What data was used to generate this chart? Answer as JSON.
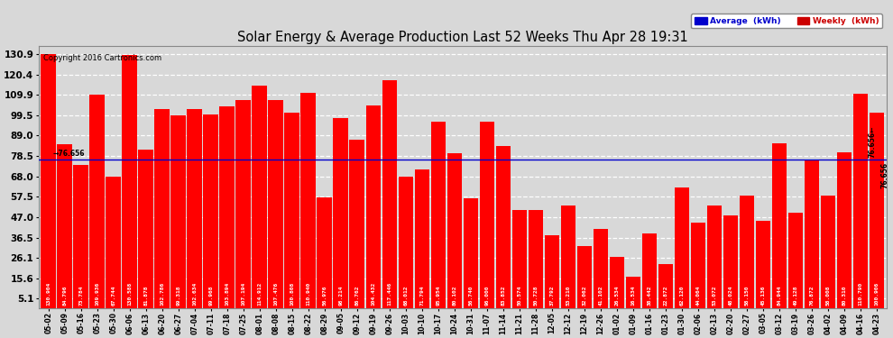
{
  "title": "Solar Energy & Average Production Last 52 Weeks Thu Apr 28 19:31",
  "copyright": "Copyright 2016 Cartronics.com",
  "average_value": 76.656,
  "bar_color": "#ff0000",
  "avg_line_color": "#0000cc",
  "background_color": "#d8d8d8",
  "grid_color": "#ffffff",
  "yticks": [
    5.1,
    15.6,
    26.1,
    36.5,
    47.0,
    57.5,
    68.0,
    78.5,
    89.0,
    99.5,
    109.9,
    120.4,
    130.9
  ],
  "legend_avg_color": "#0000cc",
  "legend_weekly_color": "#cc0000",
  "categories": [
    "05-02",
    "05-09",
    "05-16",
    "05-23",
    "05-30",
    "06-06",
    "06-13",
    "06-20",
    "06-27",
    "07-04",
    "07-11",
    "07-18",
    "07-25",
    "08-01",
    "08-08",
    "08-15",
    "08-22",
    "08-29",
    "09-05",
    "09-12",
    "09-19",
    "09-26",
    "10-03",
    "10-10",
    "10-17",
    "10-24",
    "10-31",
    "11-07",
    "11-14",
    "11-21",
    "11-28",
    "12-05",
    "12-12",
    "12-19",
    "12-26",
    "01-02",
    "01-09",
    "01-16",
    "01-23",
    "01-30",
    "02-06",
    "02-13",
    "02-20",
    "02-27",
    "03-05",
    "03-12",
    "03-19",
    "03-26",
    "04-02",
    "04-09",
    "04-16",
    "04-23"
  ],
  "values": [
    130.904,
    84.796,
    73.784,
    109.936,
    67.744,
    130.588,
    81.878,
    102.786,
    99.318,
    102.634,
    99.968,
    103.894,
    107.194,
    114.912,
    107.476,
    100.808,
    110.94,
    56.976,
    98.214,
    86.762,
    104.432,
    117.446,
    68.012,
    71.794,
    95.954,
    80.102,
    56.74,
    96.0,
    83.852,
    50.574,
    50.728,
    37.792,
    53.21,
    32.062,
    41.102,
    26.534,
    16.534,
    38.442,
    22.872,
    62.12,
    44.064,
    53.072,
    48.024,
    58.15,
    45.136,
    84.944,
    49.128,
    76.872,
    58.008,
    80.31,
    110.79,
    100.906
  ]
}
